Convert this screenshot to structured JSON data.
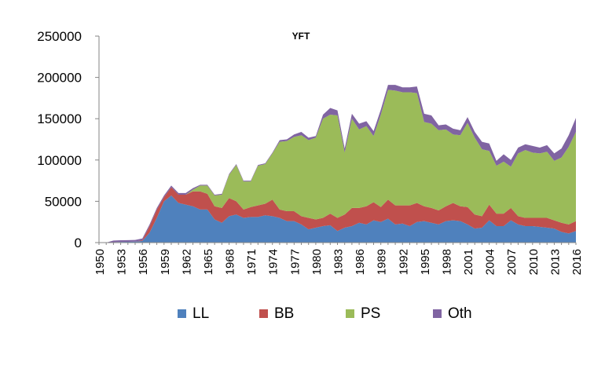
{
  "chart_data": {
    "type": "area",
    "stacked": true,
    "title": "YFT",
    "xlabel": "",
    "ylabel": "",
    "ylim": [
      0,
      250000
    ],
    "yticks": [
      0,
      50000,
      100000,
      150000,
      200000,
      250000
    ],
    "ytick_labels": [
      "0",
      "50000",
      "100000",
      "150000",
      "200000",
      "250000"
    ],
    "xlim": [
      1950,
      2016
    ],
    "xticks": [
      1950,
      1953,
      1956,
      1959,
      1962,
      1965,
      1968,
      1971,
      1974,
      1977,
      1980,
      1983,
      1986,
      1989,
      1992,
      1995,
      1998,
      2001,
      2004,
      2007,
      2010,
      2013,
      2016
    ],
    "xtick_labels": [
      "1950",
      "1953",
      "1956",
      "1959",
      "1962",
      "1965",
      "1968",
      "1971",
      "1974",
      "1977",
      "1980",
      "1983",
      "1986",
      "1989",
      "1992",
      "1995",
      "1998",
      "2001",
      "2004",
      "2007",
      "2010",
      "2013",
      "2016"
    ],
    "grid": false,
    "legend_position": "bottom",
    "x": [
      1950,
      1951,
      1952,
      1953,
      1954,
      1955,
      1956,
      1957,
      1958,
      1959,
      1960,
      1961,
      1962,
      1963,
      1964,
      1965,
      1966,
      1967,
      1968,
      1969,
      1970,
      1971,
      1972,
      1973,
      1974,
      1975,
      1976,
      1977,
      1978,
      1979,
      1980,
      1981,
      1982,
      1983,
      1984,
      1985,
      1986,
      1987,
      1988,
      1989,
      1990,
      1991,
      1992,
      1993,
      1994,
      1995,
      1996,
      1997,
      1998,
      1999,
      2000,
      2001,
      2002,
      2003,
      2004,
      2005,
      2006,
      2007,
      2008,
      2009,
      2010,
      2011,
      2012,
      2013,
      2014,
      2015,
      2016
    ],
    "series": [
      {
        "name": "LL",
        "color": "#4F81BD",
        "values": [
          0,
          0,
          500,
          800,
          1000,
          1200,
          2000,
          12000,
          30000,
          50000,
          57000,
          48000,
          46000,
          44000,
          40000,
          40000,
          28000,
          24000,
          32000,
          34000,
          30000,
          31000,
          31000,
          33000,
          32000,
          30000,
          26000,
          26000,
          22000,
          16000,
          18000,
          20000,
          21000,
          14000,
          18000,
          20000,
          24000,
          22000,
          27000,
          25000,
          29000,
          22000,
          23000,
          20000,
          25000,
          26000,
          24000,
          22000,
          26000,
          27000,
          26000,
          22000,
          17000,
          18000,
          27000,
          20000,
          20000,
          27000,
          22000,
          20000,
          20000,
          19000,
          18000,
          17000,
          13000,
          11000,
          14000
        ]
      },
      {
        "name": "BB",
        "color": "#C0504D",
        "values": [
          0,
          0,
          0,
          0,
          0,
          0,
          1000,
          8000,
          10000,
          5000,
          10000,
          10000,
          12000,
          18000,
          22000,
          19000,
          16000,
          18000,
          22000,
          16000,
          10000,
          12000,
          14000,
          14000,
          20000,
          10000,
          12000,
          12000,
          10000,
          14000,
          10000,
          10000,
          14000,
          16000,
          16000,
          22000,
          18000,
          22000,
          22000,
          18000,
          23000,
          23000,
          22000,
          25000,
          23000,
          18000,
          18000,
          17000,
          18000,
          21000,
          18000,
          21000,
          17000,
          14000,
          19000,
          15000,
          15000,
          15000,
          10000,
          10000,
          10000,
          11000,
          12000,
          10000,
          11000,
          11000,
          12000
        ]
      },
      {
        "name": "PS",
        "color": "#9BBB59",
        "values": [
          0,
          0,
          0,
          0,
          0,
          0,
          0,
          0,
          0,
          0,
          0,
          0,
          0,
          2000,
          7000,
          10000,
          13000,
          16000,
          28000,
          44000,
          34000,
          31000,
          48000,
          48000,
          56000,
          82000,
          85000,
          90000,
          98000,
          94000,
          99000,
          120000,
          120000,
          124000,
          75000,
          108000,
          95000,
          97000,
          80000,
          112000,
          133000,
          139000,
          137000,
          137000,
          133000,
          102000,
          102000,
          97000,
          93000,
          83000,
          86000,
          102000,
          93000,
          81000,
          65000,
          58000,
          63000,
          50000,
          76000,
          82000,
          79000,
          78000,
          80000,
          72000,
          79000,
          94000,
          108000
        ]
      },
      {
        "name": "Oth",
        "color": "#8064A2",
        "values": [
          0,
          0,
          2000,
          2000,
          2000,
          2000,
          2000,
          2000,
          2000,
          2000,
          2000,
          2000,
          2000,
          2000,
          1000,
          1000,
          1000,
          1000,
          1000,
          1000,
          1000,
          1000,
          1000,
          1000,
          1000,
          2000,
          2000,
          3000,
          4000,
          3000,
          2000,
          5000,
          8000,
          6000,
          5000,
          6000,
          7000,
          6000,
          6000,
          6000,
          6000,
          7000,
          6000,
          6000,
          8000,
          10000,
          10000,
          6000,
          6000,
          7000,
          6000,
          7000,
          7000,
          9000,
          9000,
          6000,
          9000,
          8000,
          7000,
          7000,
          8000,
          7000,
          8000,
          9000,
          11000,
          14000,
          17000
        ]
      }
    ]
  }
}
